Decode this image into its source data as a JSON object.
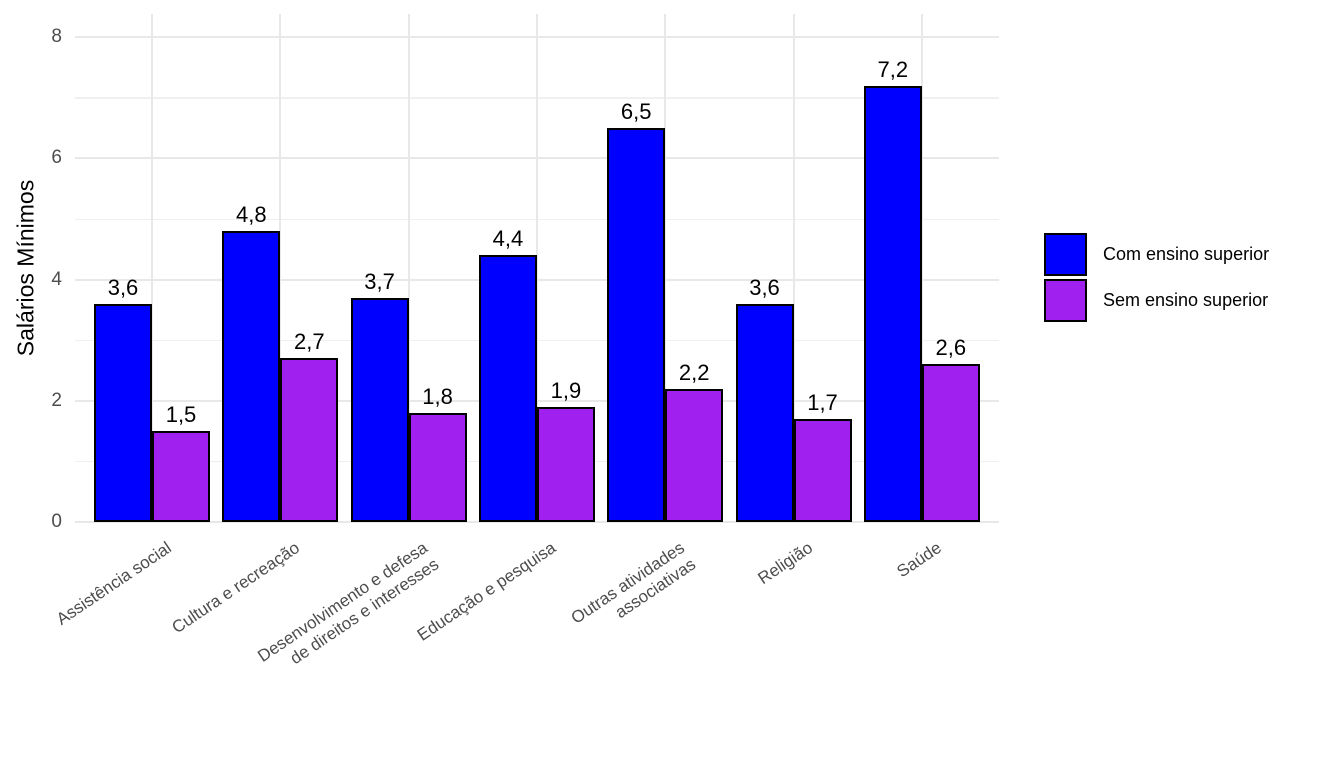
{
  "chart_data": {
    "type": "bar",
    "title": "",
    "xlabel": "",
    "ylabel": "Salários Mínimos",
    "categories": [
      "Assistência social",
      "Cultura e recreação",
      "Desenvolvimento e defesa\nde direitos e interesses",
      "Educação e pesquisa",
      "Outras atividades\nassociativas",
      "Religião",
      "Saúde"
    ],
    "series": [
      {
        "name": "Com ensino superior",
        "color": "#0000ff",
        "values": [
          3.6,
          4.8,
          3.7,
          4.4,
          6.5,
          3.6,
          7.2
        ],
        "labels": [
          "3,6",
          "4,8",
          "3,7",
          "4,4",
          "6,5",
          "3,6",
          "7,2"
        ]
      },
      {
        "name": "Sem ensino superior",
        "color": "#a020f0",
        "values": [
          1.5,
          2.7,
          1.8,
          1.9,
          2.2,
          1.7,
          2.6
        ],
        "labels": [
          "1,5",
          "2,7",
          "1,8",
          "1,9",
          "2,2",
          "1,7",
          "2,6"
        ]
      }
    ],
    "yticks": [
      0,
      2,
      4,
      6,
      8
    ],
    "ytick_labels": [
      "0",
      "2",
      "4",
      "6",
      "8"
    ],
    "yminor": [
      1,
      3,
      5,
      7
    ],
    "ylim": [
      0,
      8.37
    ],
    "legend_position": "right",
    "colors": {
      "bar_border": "#000000",
      "grid_major": "#e8e8e8",
      "grid_minor": "#f0f0f0",
      "axis_text": "#4d4d4d",
      "bar_label_text": "#000000",
      "background": "#ffffff"
    }
  }
}
